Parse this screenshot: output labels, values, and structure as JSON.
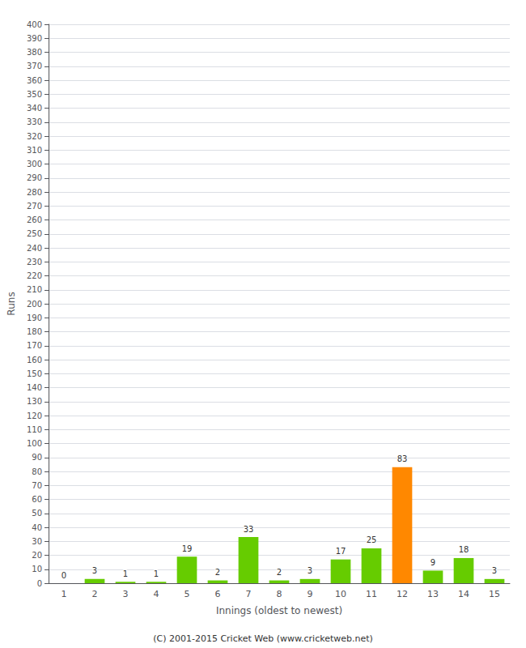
{
  "chart_data": {
    "type": "bar",
    "xlabel": "Innings (oldest to newest)",
    "ylabel": "Runs",
    "categories": [
      "1",
      "2",
      "3",
      "4",
      "5",
      "6",
      "7",
      "8",
      "9",
      "10",
      "11",
      "12",
      "13",
      "14",
      "15"
    ],
    "values": [
      0,
      3,
      1,
      1,
      19,
      2,
      33,
      2,
      3,
      17,
      25,
      83,
      9,
      18,
      3
    ],
    "colors": [
      "#66cc00",
      "#66cc00",
      "#66cc00",
      "#66cc00",
      "#66cc00",
      "#66cc00",
      "#66cc00",
      "#66cc00",
      "#66cc00",
      "#66cc00",
      "#66cc00",
      "#ff8800",
      "#66cc00",
      "#66cc00",
      "#66cc00"
    ],
    "ylim": [
      0,
      400
    ],
    "yticks": [
      0,
      10,
      20,
      30,
      40,
      50,
      60,
      70,
      80,
      90,
      100,
      110,
      120,
      130,
      140,
      150,
      160,
      170,
      180,
      190,
      200,
      210,
      220,
      230,
      240,
      250,
      260,
      270,
      280,
      290,
      300,
      310,
      320,
      330,
      340,
      350,
      360,
      370,
      380,
      390,
      400
    ],
    "grid": true,
    "data_labels": true,
    "annotations": [
      "(C) 2001-2015 Cricket Web (www.cricketweb.net)"
    ]
  }
}
